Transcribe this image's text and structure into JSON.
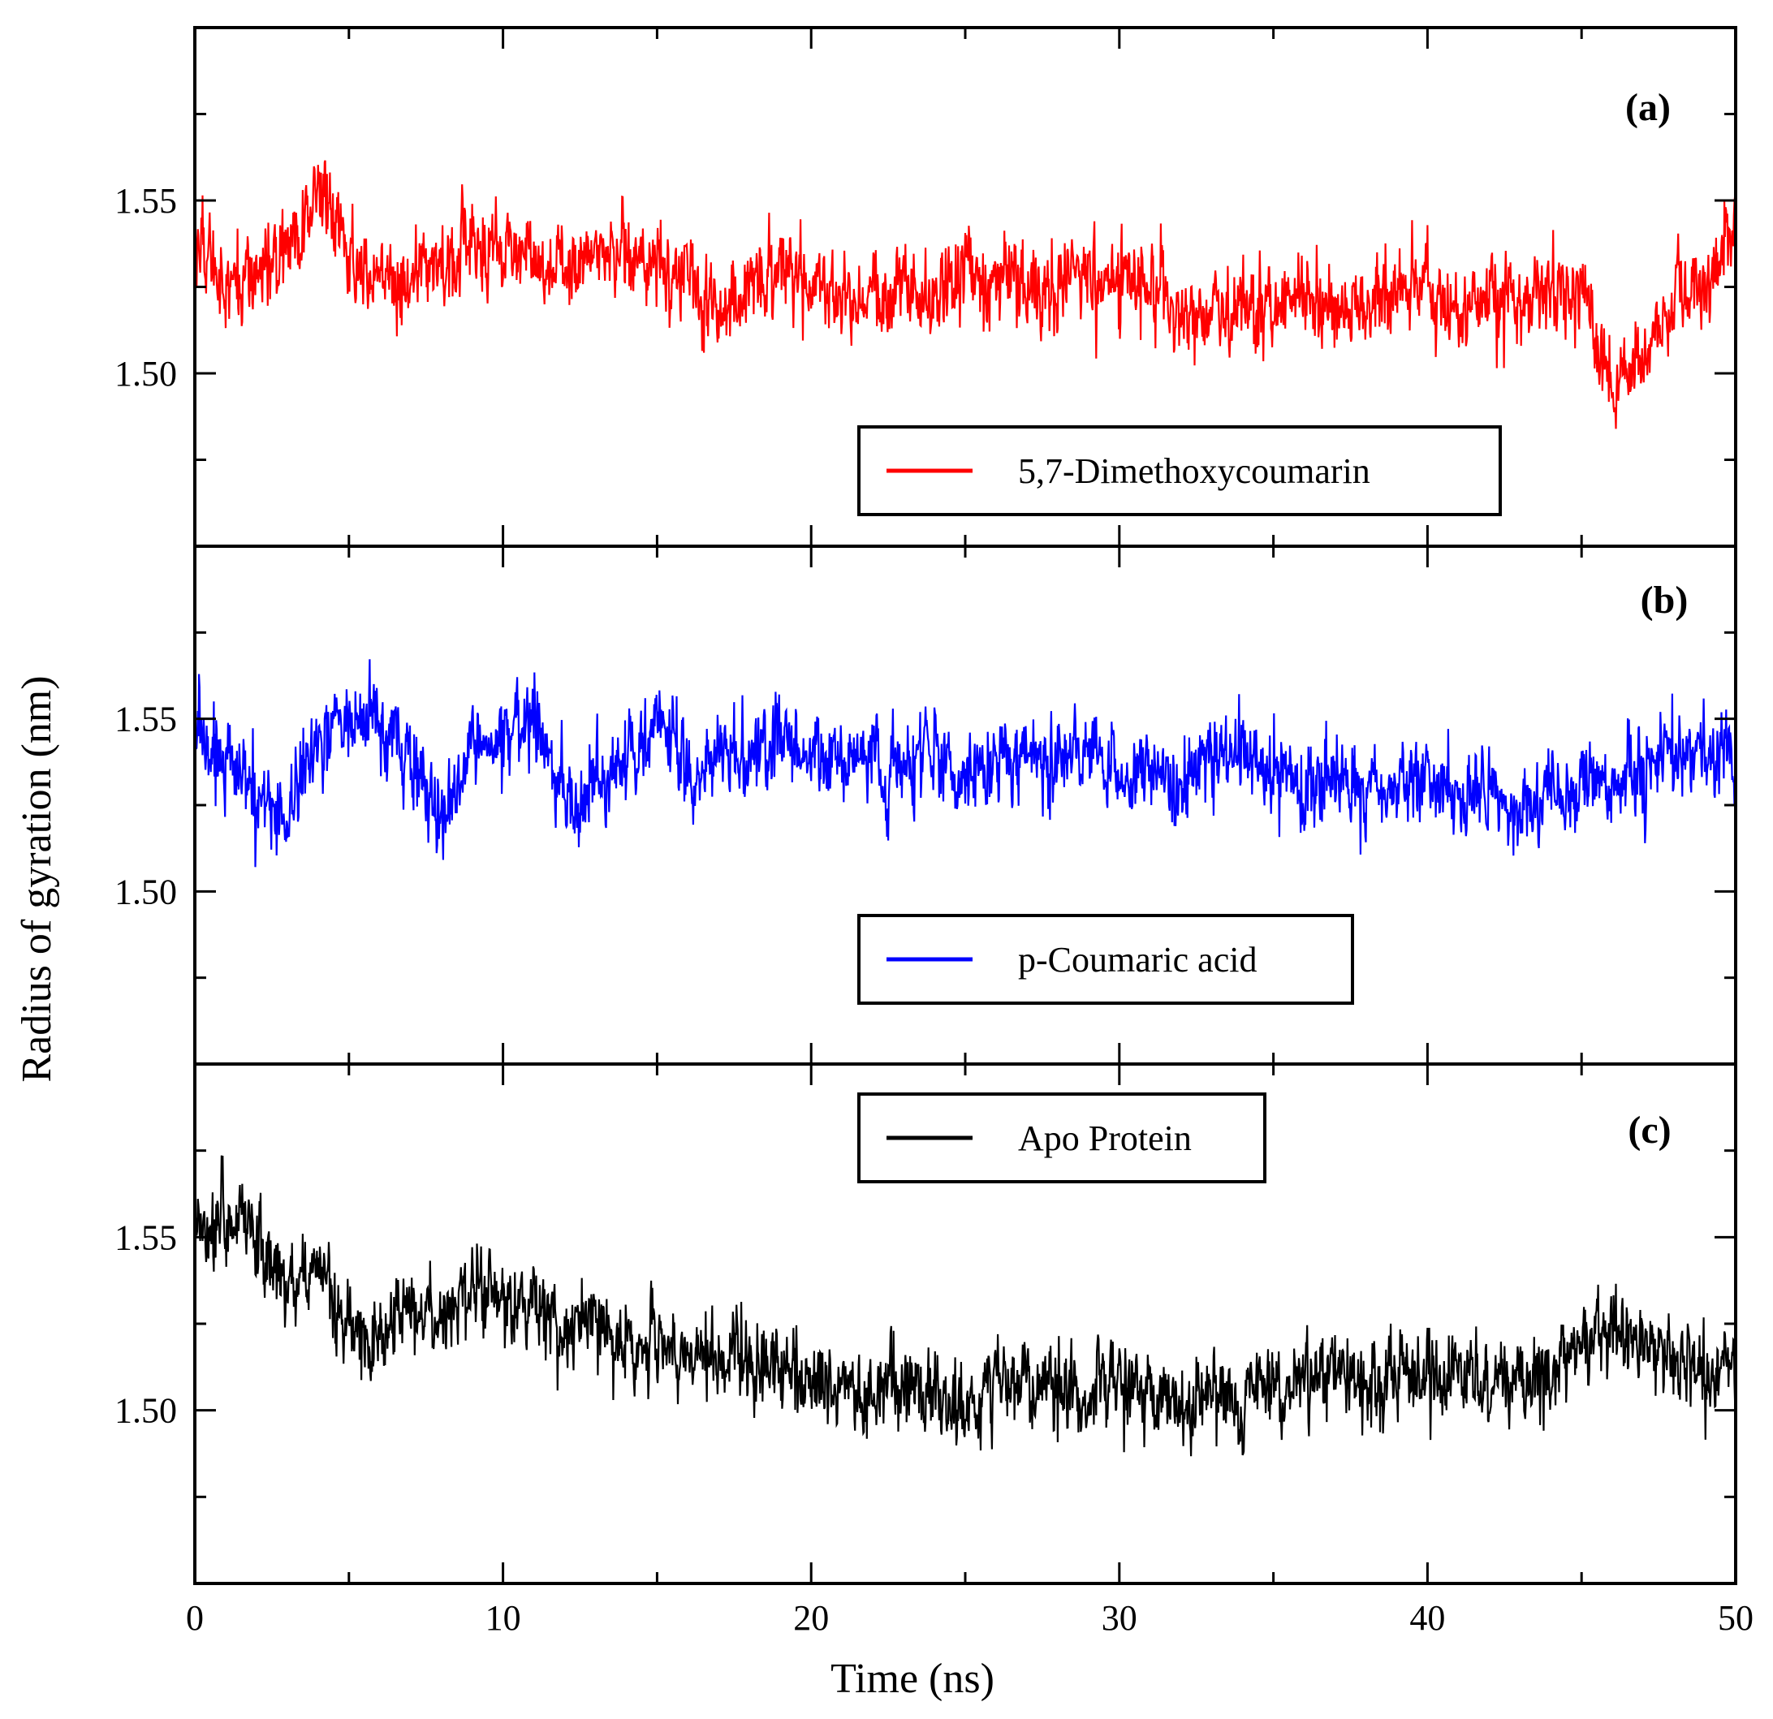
{
  "chart_data": {
    "type": "line",
    "ylabel": "Radius of gyration (nm)",
    "xlabel": "Time (ns)",
    "xlim": [
      0,
      50
    ],
    "x_ticks": [
      "0",
      "10",
      "20",
      "30",
      "40",
      "50"
    ],
    "panels": [
      {
        "tag": "(a)",
        "legend": "5,7-Dimethoxycoumarin",
        "color": "#ff0000",
        "ylim": [
          1.45,
          1.6
        ],
        "y_ticks": [
          "1.50",
          "1.55"
        ],
        "legend_position": "bottom-center",
        "series": {
          "name": "5,7-Dimethoxycoumarin",
          "x": [
            0,
            1,
            2,
            3,
            4,
            5,
            6,
            7,
            8,
            9,
            10,
            11,
            12,
            13,
            14,
            15,
            16,
            17,
            18,
            19,
            20,
            21,
            22,
            23,
            24,
            25,
            26,
            27,
            28,
            29,
            30,
            31,
            32,
            33,
            34,
            35,
            36,
            37,
            38,
            39,
            40,
            41,
            42,
            43,
            44,
            45,
            46,
            47,
            48,
            49,
            50
          ],
          "y": [
            1.54,
            1.525,
            1.528,
            1.535,
            1.555,
            1.533,
            1.53,
            1.525,
            1.532,
            1.535,
            1.538,
            1.532,
            1.53,
            1.536,
            1.535,
            1.53,
            1.528,
            1.518,
            1.525,
            1.53,
            1.528,
            1.52,
            1.525,
            1.522,
            1.523,
            1.53,
            1.528,
            1.525,
            1.525,
            1.53,
            1.528,
            1.525,
            1.518,
            1.518,
            1.52,
            1.518,
            1.523,
            1.515,
            1.52,
            1.525,
            1.523,
            1.52,
            1.523,
            1.52,
            1.525,
            1.525,
            1.495,
            1.505,
            1.518,
            1.525,
            1.545
          ]
        }
      },
      {
        "tag": "(b)",
        "legend": "p-Coumaric acid",
        "color": "#0000ff",
        "ylim": [
          1.45,
          1.6
        ],
        "y_ticks": [
          "1.50",
          "1.55"
        ],
        "legend_position": "bottom-center",
        "series": {
          "name": "p-Coumaric acid",
          "x": [
            0,
            1,
            2,
            3,
            4,
            5,
            6,
            7,
            8,
            9,
            10,
            11,
            12,
            13,
            14,
            15,
            16,
            17,
            18,
            19,
            20,
            21,
            22,
            23,
            24,
            25,
            26,
            27,
            28,
            29,
            30,
            31,
            32,
            33,
            34,
            35,
            36,
            37,
            38,
            39,
            40,
            41,
            42,
            43,
            44,
            45,
            46,
            47,
            48,
            49,
            50
          ],
          "y": [
            1.545,
            1.54,
            1.528,
            1.52,
            1.545,
            1.548,
            1.55,
            1.538,
            1.522,
            1.538,
            1.542,
            1.55,
            1.525,
            1.53,
            1.535,
            1.55,
            1.535,
            1.538,
            1.54,
            1.545,
            1.54,
            1.538,
            1.54,
            1.535,
            1.54,
            1.53,
            1.538,
            1.535,
            1.54,
            1.543,
            1.53,
            1.535,
            1.528,
            1.54,
            1.542,
            1.535,
            1.53,
            1.535,
            1.53,
            1.53,
            1.532,
            1.525,
            1.528,
            1.522,
            1.53,
            1.53,
            1.53,
            1.535,
            1.54,
            1.54,
            1.54
          ]
        }
      },
      {
        "tag": "(c)",
        "legend": "Apo Protein",
        "color": "#000000",
        "ylim": [
          1.45,
          1.6
        ],
        "y_ticks": [
          "1.50",
          "1.55"
        ],
        "legend_position": "top-center",
        "series": {
          "name": "Apo Protein",
          "x": [
            0,
            1,
            2,
            3,
            4,
            5,
            6,
            7,
            8,
            9,
            10,
            11,
            12,
            13,
            14,
            15,
            16,
            17,
            18,
            19,
            20,
            21,
            22,
            23,
            24,
            25,
            26,
            27,
            28,
            29,
            30,
            31,
            32,
            33,
            34,
            35,
            36,
            37,
            38,
            39,
            40,
            41,
            42,
            43,
            44,
            45,
            46,
            47,
            48,
            49,
            50
          ],
          "y": [
            1.555,
            1.555,
            1.55,
            1.535,
            1.54,
            1.525,
            1.52,
            1.53,
            1.525,
            1.535,
            1.53,
            1.53,
            1.52,
            1.525,
            1.52,
            1.52,
            1.515,
            1.518,
            1.515,
            1.51,
            1.508,
            1.505,
            1.505,
            1.508,
            1.505,
            1.5,
            1.51,
            1.508,
            1.505,
            1.505,
            1.51,
            1.505,
            1.5,
            1.505,
            1.505,
            1.508,
            1.51,
            1.512,
            1.508,
            1.51,
            1.51,
            1.508,
            1.508,
            1.508,
            1.51,
            1.52,
            1.525,
            1.52,
            1.515,
            1.512,
            1.51
          ]
        }
      }
    ]
  }
}
